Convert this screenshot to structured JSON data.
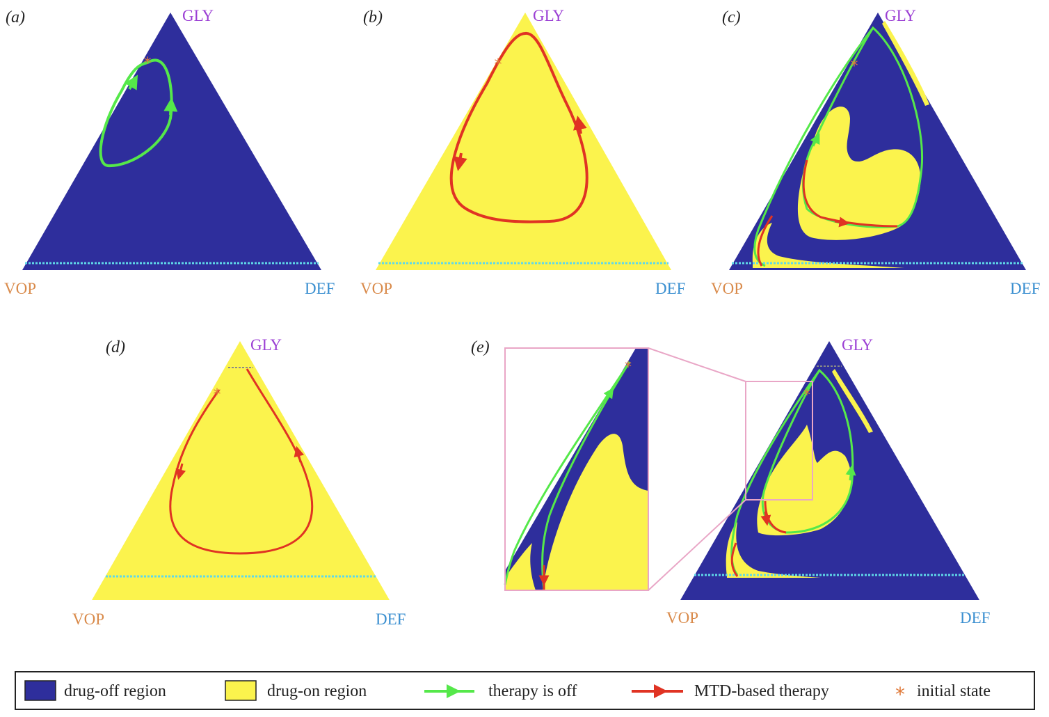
{
  "colors": {
    "drug_off": "#2e2e9c",
    "drug_on": "#fbf34d",
    "therapy_off": "#55e84a",
    "mtd": "#e03323",
    "initial": "#e07a3a",
    "gly": "#9b3fd4",
    "vop": "#d98a4a",
    "def": "#3a8fd0",
    "threshold": "#5fd8e8",
    "inset_frame": "#e9a6c6"
  },
  "vertices": {
    "gly": "GLY",
    "vop": "VOP",
    "def": "DEF"
  },
  "panels": [
    {
      "label": "(a)",
      "background": "drug-off"
    },
    {
      "label": "(b)",
      "background": "drug-on"
    },
    {
      "label": "(c)",
      "background": "drug-off"
    },
    {
      "label": "(d)",
      "background": "drug-on"
    },
    {
      "label": "(e)",
      "background": "drug-off"
    }
  ],
  "legend": {
    "items": [
      {
        "key": "drug-off",
        "label": "drug-off region",
        "icon": "blue-square-icon"
      },
      {
        "key": "drug-on",
        "label": "drug-on region",
        "icon": "yellow-square-icon"
      },
      {
        "key": "therapy-off",
        "label": "therapy is off",
        "icon": "green-arrow-icon"
      },
      {
        "key": "mtd",
        "label": "MTD-based therapy",
        "icon": "red-arrow-icon"
      },
      {
        "key": "initial",
        "label": "initial state",
        "icon": "asterisk-icon"
      }
    ]
  }
}
